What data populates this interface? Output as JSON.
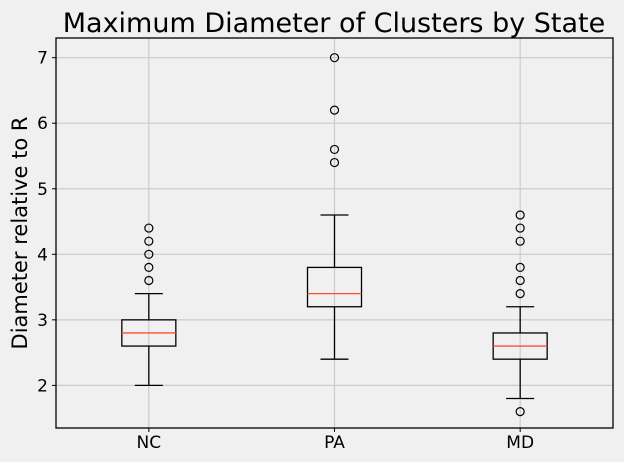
{
  "chart_data": {
    "type": "box",
    "title": "Maximum Diameter of Clusters by State",
    "xlabel": "",
    "ylabel": "Diameter relative to R",
    "ylim": [
      1.35,
      7.3
    ],
    "yticks": [
      2,
      3,
      4,
      5,
      6,
      7
    ],
    "grid": true,
    "categories": [
      "NC",
      "PA",
      "MD"
    ],
    "boxes": [
      {
        "category": "NC",
        "whisker_low": 2.0,
        "q1": 2.6,
        "median": 2.8,
        "q3": 3.0,
        "whisker_high": 3.4,
        "outliers": [
          3.6,
          3.8,
          4.0,
          4.2,
          4.4
        ]
      },
      {
        "category": "PA",
        "whisker_low": 2.4,
        "q1": 3.2,
        "median": 3.4,
        "q3": 3.8,
        "whisker_high": 4.6,
        "outliers": [
          5.4,
          5.6,
          6.2,
          7.0
        ]
      },
      {
        "category": "MD",
        "whisker_low": 1.8,
        "q1": 2.4,
        "median": 2.6,
        "q3": 2.8,
        "whisker_high": 3.2,
        "outliers": [
          1.6,
          3.4,
          3.6,
          3.8,
          4.2,
          4.4,
          4.6
        ]
      }
    ],
    "colors": {
      "background": "#f0f0f0",
      "grid": "#cbcbcb",
      "box": "#000000",
      "median": "#fc4f30",
      "axes": "#000000"
    }
  }
}
